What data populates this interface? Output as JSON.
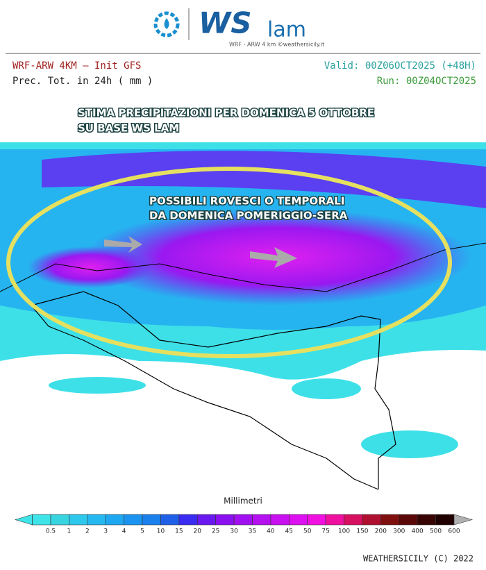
{
  "logo": {
    "brand": "WS",
    "suffix": "lam",
    "tagline": "WRF - ARW 4 km ©weathersicily.it"
  },
  "header": {
    "model": "WRF-ARW 4KM — Init GFS",
    "field": "Prec. Tot. in 24h ( mm )",
    "valid": "Valid: 00Z06OCT2025 (+48H)",
    "run": "Run: 00Z04OCT2025"
  },
  "annotations": {
    "title": [
      "STIMA PRECIPITAZIONI PER DOMENICA 5 OTTOBRE",
      "SU BASE WS LAM"
    ],
    "note": [
      "POSSIBILI ROVESCI O TEMPORALI",
      "DA DOMENICA POMERIGGIO-SERA"
    ]
  },
  "colorbar": {
    "label": "Millimetri",
    "ticks": [
      0.5,
      1,
      2,
      3,
      4,
      5,
      10,
      15,
      20,
      25,
      30,
      35,
      40,
      45,
      50,
      75,
      100,
      150,
      200,
      300,
      400,
      500,
      600
    ],
    "colors": [
      "#3ee4e8",
      "#38d4e0",
      "#2ec8ec",
      "#26b8f0",
      "#1ea8f2",
      "#1a94f0",
      "#1a80ec",
      "#2060e8",
      "#3a2cf0",
      "#6a18f0",
      "#8a10f0",
      "#a010f0",
      "#b410f0",
      "#c810f0",
      "#dc10f0",
      "#f010e0",
      "#f010a0",
      "#d81060",
      "#b01030",
      "#801010",
      "#5a0808",
      "#380404",
      "#200000",
      "#b0b0b0"
    ]
  },
  "footer": "WEATHERSICILY (C) 2022"
}
